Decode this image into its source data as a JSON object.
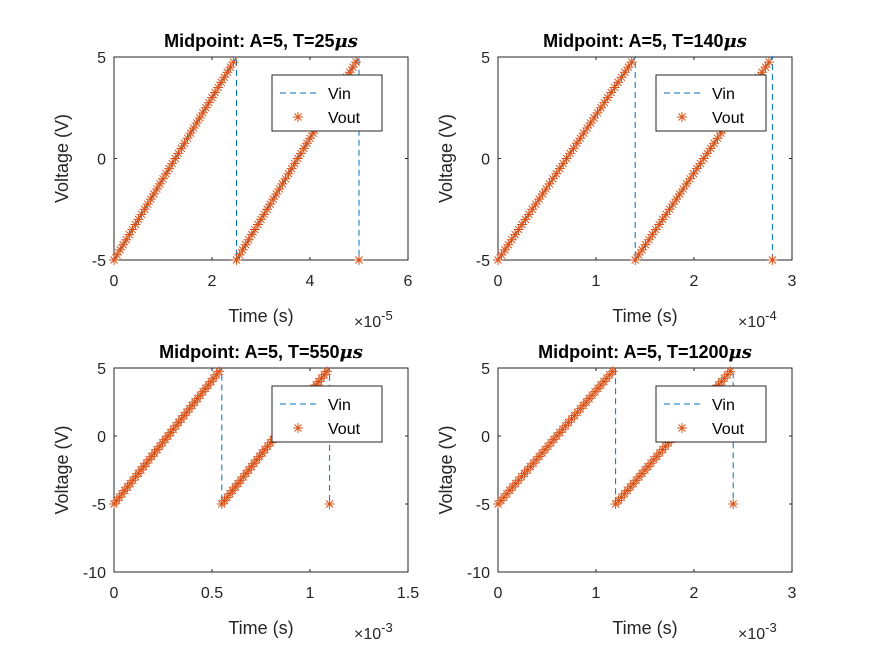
{
  "chart_data": [
    {
      "type": "line",
      "title_prefix": "Midpoint: A=5, T=25",
      "title_unit": "μs",
      "xlabel": "Time (s)",
      "ylabel": "Voltage (V)",
      "x_exponent_base": "×10",
      "x_exponent": "-5",
      "xlim": [
        0,
        6
      ],
      "ylim": [
        -5,
        5
      ],
      "xticks": [
        0,
        2,
        4,
        6
      ],
      "yticks": [
        -5,
        0,
        5
      ],
      "x_scale": 1e-05,
      "period": 2.5,
      "amplitude": 5,
      "cycles": 2,
      "series": [
        {
          "name": "Vin",
          "style": "dashed",
          "color": "#0072BD"
        },
        {
          "name": "Vout",
          "style": "asterisk",
          "color": "#D95319"
        }
      ],
      "legend": "top-right"
    },
    {
      "type": "line",
      "title_prefix": "Midpoint: A=5, T=140",
      "title_unit": "μs",
      "xlabel": "Time (s)",
      "ylabel": "Voltage (V)",
      "x_exponent_base": "×10",
      "x_exponent": "-4",
      "xlim": [
        0,
        3
      ],
      "ylim": [
        -5,
        5
      ],
      "xticks": [
        0,
        1,
        2,
        3
      ],
      "yticks": [
        -5,
        0,
        5
      ],
      "x_scale": 0.0001,
      "period": 1.4,
      "amplitude": 5,
      "cycles": 2,
      "series": [
        {
          "name": "Vin",
          "style": "dashed",
          "color": "#0072BD"
        },
        {
          "name": "Vout",
          "style": "asterisk",
          "color": "#D95319"
        }
      ],
      "legend": "top-right"
    },
    {
      "type": "line",
      "title_prefix": "Midpoint: A=5, T=550",
      "title_unit": "μs",
      "xlabel": "Time (s)",
      "ylabel": "Voltage (V)",
      "x_exponent_base": "×10",
      "x_exponent": "-3",
      "xlim": [
        0,
        1.5
      ],
      "ylim": [
        -10,
        5
      ],
      "xticks": [
        0,
        0.5,
        1,
        1.5
      ],
      "yticks": [
        -10,
        -5,
        0,
        5
      ],
      "x_scale": 0.001,
      "period": 0.55,
      "amplitude": 5,
      "cycles": 2,
      "series": [
        {
          "name": "Vin",
          "style": "dashed",
          "color": "#0072BD"
        },
        {
          "name": "Vout",
          "style": "asterisk",
          "color": "#D95319"
        }
      ],
      "legend": "top-right"
    },
    {
      "type": "line",
      "title_prefix": "Midpoint: A=5, T=1200",
      "title_unit": "μs",
      "xlabel": "Time (s)",
      "ylabel": "Voltage (V)",
      "x_exponent_base": "×10",
      "x_exponent": "-3",
      "xlim": [
        0,
        3
      ],
      "ylim": [
        -10,
        5
      ],
      "xticks": [
        0,
        1,
        2,
        3
      ],
      "yticks": [
        -10,
        -5,
        0,
        5
      ],
      "x_scale": 0.001,
      "period": 1.2,
      "amplitude": 5,
      "cycles": 2,
      "series": [
        {
          "name": "Vin",
          "style": "dashed",
          "color": "#0072BD"
        },
        {
          "name": "Vout",
          "style": "asterisk",
          "color": "#D95319"
        }
      ],
      "legend": "top-right"
    }
  ]
}
